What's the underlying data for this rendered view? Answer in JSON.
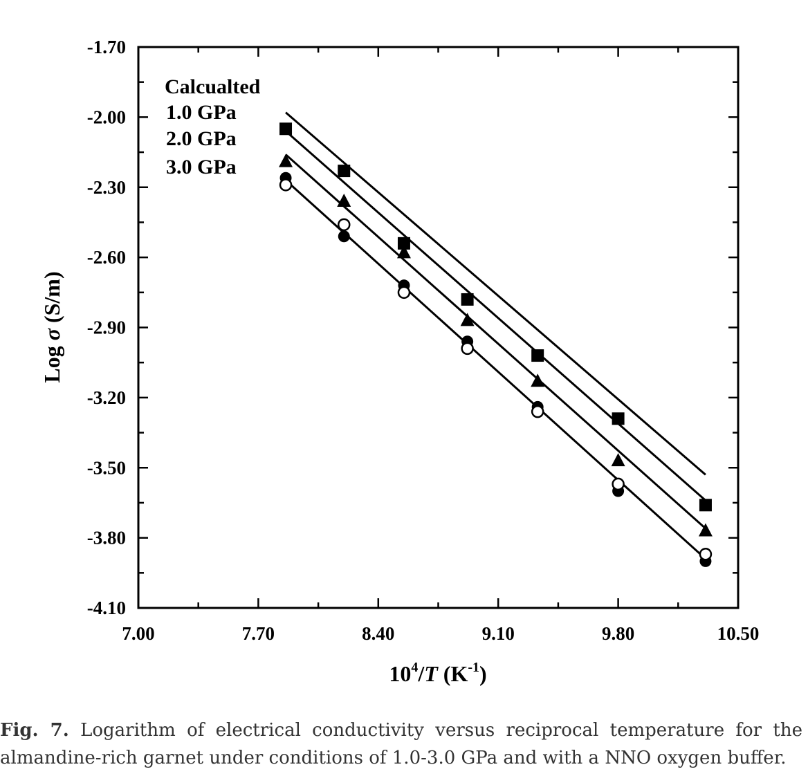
{
  "chart_data": {
    "type": "scatter",
    "xlabel_base": "10",
    "xlabel_exp": "4",
    "xlabel_slash": "/",
    "xlabel_var": "T",
    "xlabel_unit_open": " (K",
    "xlabel_unit_exp": "-1",
    "xlabel_unit_close": ")",
    "ylabel_prefix": "Log ",
    "ylabel_symbol": "σ",
    "ylabel_unit": " (S/m)",
    "xlim": [
      7.0,
      10.5
    ],
    "ylim": [
      -4.1,
      -1.7
    ],
    "x_ticks": [
      "7.00",
      "7.70",
      "8.40",
      "9.10",
      "9.80",
      "10.50"
    ],
    "y_ticks": [
      "-1.70",
      "-2.00",
      "-2.30",
      "-2.60",
      "-2.90",
      "-3.20",
      "-3.50",
      "-3.80",
      "-4.10"
    ],
    "legend_lines": [
      "Calcualted",
      "1.0 GPa",
      "2.0 GPa",
      "3.0 GPa"
    ],
    "legend_position": "top-left",
    "series": [
      {
        "marker": "square",
        "x": [
          7.86,
          8.2,
          8.55,
          8.92,
          9.33,
          9.8,
          10.31
        ],
        "y": [
          -2.05,
          -2.23,
          -2.54,
          -2.78,
          -3.02,
          -3.29,
          -3.66
        ]
      },
      {
        "marker": "triangle",
        "x": [
          7.86,
          8.2,
          8.55,
          8.92,
          9.33,
          9.8,
          10.31
        ],
        "y": [
          -2.19,
          -2.36,
          -2.58,
          -2.87,
          -3.13,
          -3.47,
          -3.77
        ]
      },
      {
        "marker": "filled-circle",
        "x": [
          7.86,
          8.2,
          8.55,
          8.92,
          9.33,
          9.8,
          10.31
        ],
        "y": [
          -2.26,
          -2.51,
          -2.72,
          -2.96,
          -3.24,
          -3.6,
          -3.9
        ]
      },
      {
        "marker": "open-circle",
        "x": [
          7.86,
          8.2,
          8.55,
          8.92,
          9.33,
          9.8,
          10.31
        ],
        "y": [
          -2.29,
          -2.46,
          -2.75,
          -2.99,
          -3.26,
          -3.57,
          -3.87
        ]
      }
    ],
    "fit_lines": [
      {
        "x": [
          7.86,
          10.31
        ],
        "y": [
          -1.98,
          -3.53
        ]
      },
      {
        "x": [
          7.86,
          10.31
        ],
        "y": [
          -2.06,
          -3.64
        ]
      },
      {
        "x": [
          7.86,
          10.31
        ],
        "y": [
          -2.16,
          -3.76
        ]
      },
      {
        "x": [
          7.86,
          10.31
        ],
        "y": [
          -2.27,
          -3.89
        ]
      }
    ]
  },
  "caption": {
    "label": "Fig. 7.",
    "line1": " Logarithm of electrical conductivity versus reciprocal temperature for the",
    "line2": "almandine-rich garnet under conditions of 1.0-3.0 GPa and with a NNO oxygen buffer."
  }
}
